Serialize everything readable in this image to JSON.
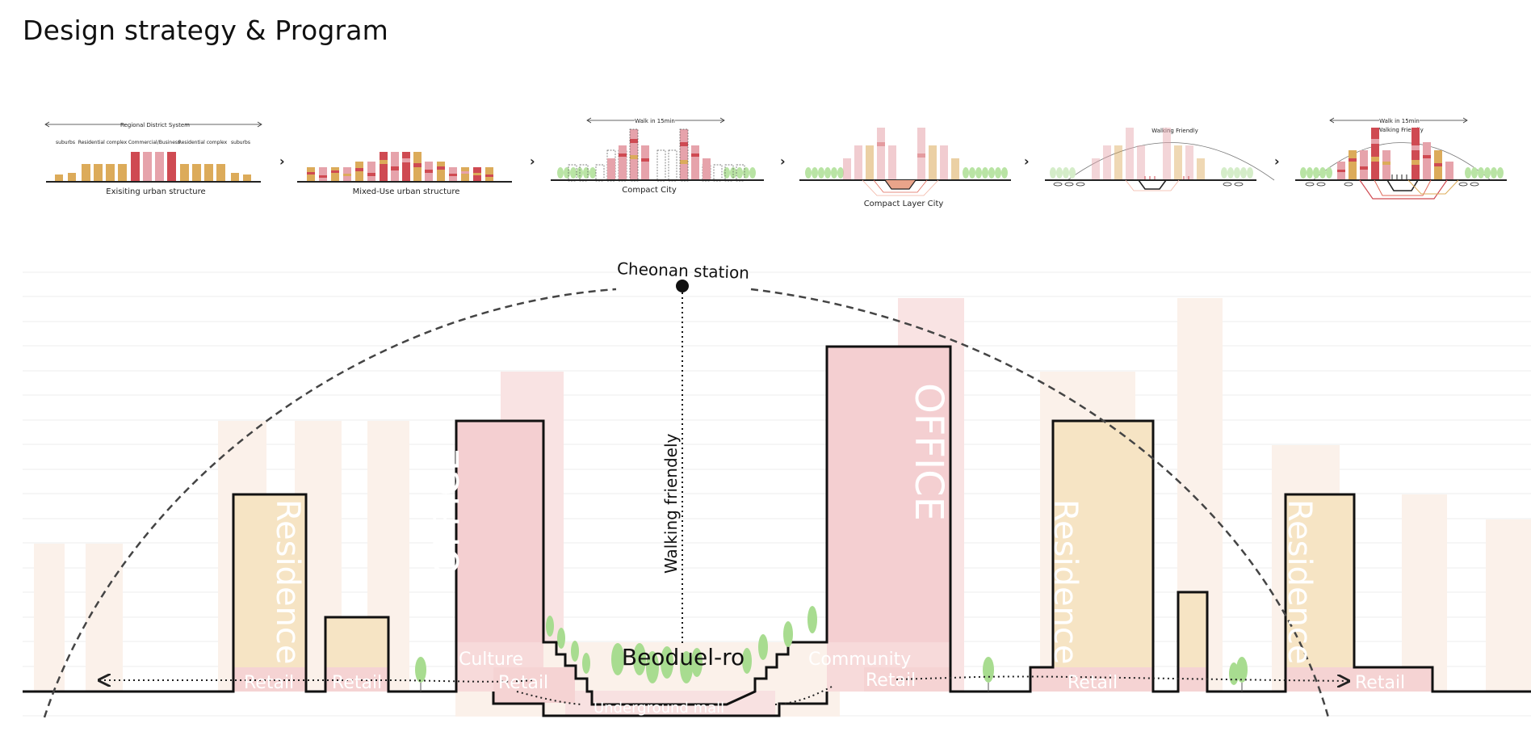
{
  "title": "Design strategy & Program",
  "strategy_steps": [
    {
      "label": "Exisiting urban structure",
      "top_label": "Regional District System",
      "zones": [
        "suburbs",
        "Residential complex",
        "Commercial/Business",
        "Residential complex",
        "suburbs"
      ]
    },
    {
      "label": "Mixed-Use urban structure"
    },
    {
      "label": "Compact City",
      "top_label": "Walk in 15min"
    },
    {
      "label": "Compact Layer City"
    },
    {
      "label": "",
      "arc_label": "Walking Friendly"
    },
    {
      "label": "",
      "top_label": "Walk in 15min",
      "arc_label": "Walking Friendly"
    }
  ],
  "section": {
    "station": "Cheonan station",
    "walk_label": "Walking friendely",
    "road": "Beoduel-ro",
    "program": {
      "office": "OFFICE",
      "residence": "Residence",
      "retail": "Retail",
      "culture": "Culture",
      "community": "Community",
      "underground": "Underground mall"
    }
  },
  "colors": {
    "office": "#f4cfd1",
    "residence": "#f6e4c4",
    "retail": "#f5d3d3",
    "ghost": "#fbf1ea",
    "ghost_pink": "#f9e3e3",
    "tree": "#a8dc90",
    "bar_gold": "#dcab5a",
    "bar_red": "#cf4a52",
    "bar_pink": "#e6a3ab"
  }
}
